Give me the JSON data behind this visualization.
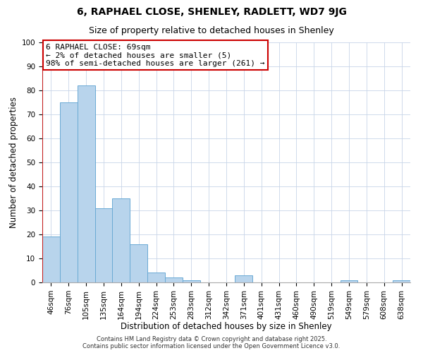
{
  "title": "6, RAPHAEL CLOSE, SHENLEY, RADLETT, WD7 9JG",
  "subtitle": "Size of property relative to detached houses in Shenley",
  "xlabel": "Distribution of detached houses by size in Shenley",
  "ylabel": "Number of detached properties",
  "categories": [
    "46sqm",
    "76sqm",
    "105sqm",
    "135sqm",
    "164sqm",
    "194sqm",
    "224sqm",
    "253sqm",
    "283sqm",
    "312sqm",
    "342sqm",
    "371sqm",
    "401sqm",
    "431sqm",
    "460sqm",
    "490sqm",
    "519sqm",
    "549sqm",
    "579sqm",
    "608sqm",
    "638sqm"
  ],
  "values": [
    19,
    75,
    82,
    31,
    35,
    16,
    4,
    2,
    1,
    0,
    0,
    3,
    0,
    0,
    0,
    0,
    0,
    1,
    0,
    0,
    1
  ],
  "bar_color": "#b8d4ec",
  "bar_edge_color": "#6aaad4",
  "marker_line_color": "#cc0000",
  "ylim": [
    0,
    100
  ],
  "yticks": [
    0,
    10,
    20,
    30,
    40,
    50,
    60,
    70,
    80,
    90,
    100
  ],
  "annotation_title": "6 RAPHAEL CLOSE: 69sqm",
  "annotation_line1": "← 2% of detached houses are smaller (5)",
  "annotation_line2": "98% of semi-detached houses are larger (261) →",
  "annotation_box_color": "#ffffff",
  "annotation_box_edge": "#cc0000",
  "footnote1": "Contains HM Land Registry data © Crown copyright and database right 2025.",
  "footnote2": "Contains public sector information licensed under the Open Government Licence v3.0.",
  "background_color": "#ffffff",
  "grid_color": "#c8d4e8",
  "title_fontsize": 10,
  "subtitle_fontsize": 9,
  "axis_label_fontsize": 8.5,
  "tick_fontsize": 7.5,
  "annotation_fontsize": 8,
  "footnote_fontsize": 6
}
